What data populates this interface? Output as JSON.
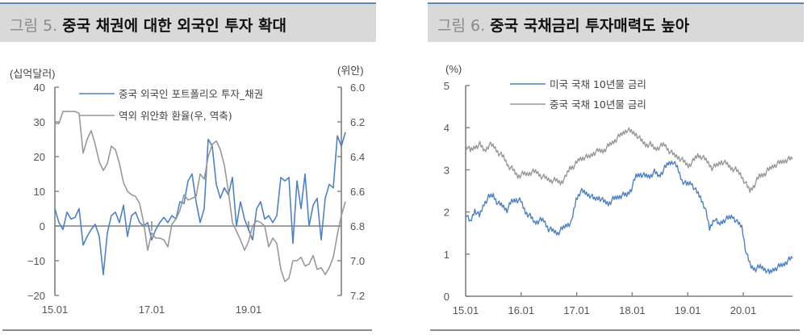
{
  "figures": [
    {
      "fig_label": "그림 5.",
      "title": "중국 채권에 대한 외국인 투자 확대",
      "left_unit": "(십억달러)",
      "right_unit": "(위안)",
      "legend": [
        "중국 외국인 포트폴리오 투자_채권",
        "역외 위안화 환율(우, 역축)"
      ]
    },
    {
      "fig_label": "그림 6.",
      "title": "중국 국채금리 투자매력도 높아",
      "left_unit": "(%)",
      "legend": [
        "미국 국채 10년물 금리",
        "중국 국채 10년물 금리"
      ]
    }
  ],
  "colors": {
    "blue": "#4f81c7",
    "gray": "#999999",
    "axis": "#7f7f7f"
  },
  "chart_data": [
    {
      "type": "line",
      "title": "중국 채권에 대한 외국인 투자 확대",
      "xlabel": "",
      "ylabel": "(십억달러)",
      "y2label": "(위안)",
      "x_ticks": [
        "15.01",
        "17.01",
        "19.01"
      ],
      "y_ticks": [
        40,
        30,
        20,
        10,
        0,
        -10,
        -20
      ],
      "y2_ticks": [
        "6.0",
        "6.2",
        "6.4",
        "6.6",
        "6.8",
        "7.0",
        "7.2"
      ],
      "ylim": [
        -20,
        40
      ],
      "y2lim": [
        6.0,
        7.2
      ],
      "y2_inverted": true,
      "x_start": "2015-01",
      "frequency": "monthly",
      "series": [
        {
          "name": "중국 외국인 포트폴리오 투자_채권",
          "axis": "left",
          "color": "#4f81c7",
          "values": [
            5,
            1,
            -1,
            4,
            2,
            2.5,
            5,
            -5.5,
            -3,
            -1,
            0.5,
            -3,
            -14,
            -2,
            3,
            4,
            1,
            6,
            -3,
            3,
            4,
            1,
            0,
            1,
            -4,
            -1,
            1,
            2.5,
            1,
            3,
            2,
            7,
            6.5,
            13,
            15,
            7,
            1,
            5,
            25,
            23,
            12,
            8,
            11,
            9,
            14,
            0,
            7,
            2,
            -1,
            -4,
            5,
            7,
            2,
            3,
            1,
            3,
            14,
            13,
            14,
            -5,
            13,
            5,
            15,
            0,
            6,
            8,
            -4,
            8,
            12,
            11,
            26,
            23,
            27
          ],
          "note": "approximate readings"
        },
        {
          "name": "역외 위안화 환율(우, 역축)",
          "axis": "right",
          "color": "#999999",
          "values": [
            6.21,
            6.21,
            6.14,
            6.14,
            6.14,
            6.14,
            6.15,
            6.38,
            6.3,
            6.25,
            6.33,
            6.43,
            6.48,
            6.44,
            6.34,
            6.36,
            6.44,
            6.55,
            6.6,
            6.62,
            6.63,
            6.67,
            6.78,
            6.94,
            6.84,
            6.87,
            6.87,
            6.88,
            6.92,
            6.79,
            6.76,
            6.71,
            6.62,
            6.65,
            6.64,
            6.63,
            6.5,
            6.53,
            6.4,
            6.33,
            6.31,
            6.36,
            6.45,
            6.6,
            6.78,
            6.83,
            6.88,
            6.94,
            6.89,
            6.8,
            6.77,
            6.78,
            6.8,
            6.92,
            6.87,
            6.9,
            7.05,
            7.12,
            7.1,
            7.0,
            7.0,
            6.98,
            7.03,
            7.02,
            6.97,
            7.05,
            7.04,
            7.08,
            7.04,
            6.98,
            6.85,
            6.74,
            6.66
          ],
          "note": "approximate readings"
        }
      ]
    },
    {
      "type": "line",
      "title": "중국 국채금리 투자매력도 높아",
      "xlabel": "",
      "ylabel": "(%)",
      "x_ticks": [
        "15.01",
        "16.01",
        "17.01",
        "18.01",
        "19.01",
        "20.01"
      ],
      "y_ticks": [
        5,
        4,
        3,
        2,
        1,
        0
      ],
      "ylim": [
        0,
        5
      ],
      "x_start": "2015-01",
      "frequency": "approx. semi-monthly",
      "series": [
        {
          "name": "미국 국채 10년물 금리",
          "color": "#4f81c7",
          "values": [
            1.95,
            1.75,
            2.05,
            1.9,
            2.2,
            2.35,
            2.4,
            2.2,
            2.15,
            2.05,
            2.25,
            2.3,
            2.25,
            2.0,
            1.9,
            1.75,
            1.8,
            1.8,
            1.6,
            1.55,
            1.5,
            1.6,
            1.7,
            1.75,
            2.3,
            2.5,
            2.45,
            2.4,
            2.3,
            2.35,
            2.25,
            2.2,
            2.3,
            2.35,
            2.4,
            2.4,
            2.55,
            2.85,
            2.9,
            2.85,
            2.85,
            2.95,
            2.85,
            3.0,
            3.15,
            3.2,
            3.05,
            2.75,
            2.65,
            2.7,
            2.5,
            2.35,
            2.1,
            1.6,
            1.85,
            1.7,
            1.8,
            1.85,
            1.9,
            1.75,
            1.65,
            1.0,
            0.7,
            0.65,
            0.7,
            0.65,
            0.55,
            0.65,
            0.7,
            0.75,
            0.85,
            0.9
          ],
          "note": "approximate readings"
        },
        {
          "name": "중국 국채 10년물 금리",
          "color": "#999999",
          "values": [
            3.6,
            3.45,
            3.55,
            3.6,
            3.45,
            3.6,
            3.55,
            3.4,
            3.3,
            3.1,
            3.0,
            2.85,
            2.9,
            2.9,
            2.95,
            2.95,
            2.85,
            2.8,
            2.75,
            2.75,
            2.7,
            2.8,
            3.05,
            3.1,
            3.25,
            3.3,
            3.3,
            3.4,
            3.45,
            3.45,
            3.55,
            3.65,
            3.75,
            3.85,
            3.95,
            3.9,
            3.85,
            3.7,
            3.6,
            3.6,
            3.5,
            3.55,
            3.6,
            3.45,
            3.35,
            3.3,
            3.2,
            3.1,
            3.2,
            3.35,
            3.3,
            3.2,
            3.05,
            3.1,
            3.2,
            3.15,
            3.05,
            3.0,
            2.9,
            2.7,
            2.5,
            2.65,
            2.85,
            2.9,
            3.0,
            3.1,
            3.15,
            3.2,
            3.25,
            3.25
          ],
          "note": "approximate readings"
        }
      ]
    }
  ]
}
